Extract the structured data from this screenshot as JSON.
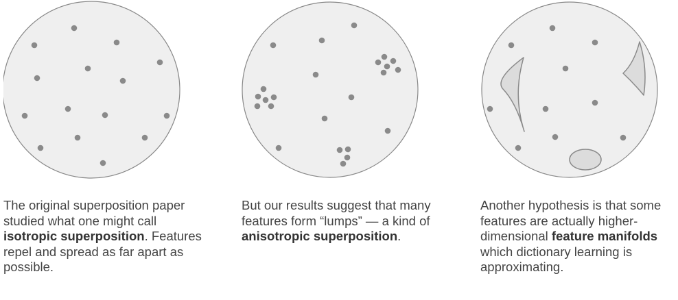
{
  "colors": {
    "disk_fill": "#efefef",
    "disk_stroke": "#888888",
    "dot": "#8a8a8a",
    "manifold_fill": "#dcdcdc",
    "manifold_stroke": "#8a8a8a",
    "text": "#444444"
  },
  "panels": [
    {
      "id": "isotropic",
      "caption_parts": [
        {
          "text": "The original superposition paper studied what one might call ",
          "bold": false
        },
        {
          "text": "isotropic superposition",
          "bold": true
        },
        {
          "text": ". Features repel and spread as far apart as possible.",
          "bold": false
        }
      ]
    },
    {
      "id": "anisotropic",
      "caption_parts": [
        {
          "text": "But our results suggest that many features form “lumps” — a kind of ",
          "bold": false
        },
        {
          "text": "anisotropic superposition",
          "bold": true
        },
        {
          "text": ".",
          "bold": false
        }
      ]
    },
    {
      "id": "manifolds",
      "caption_parts": [
        {
          "text": "Another hypothesis is that some features are actually higher-dimensional ",
          "bold": false
        },
        {
          "text": "feature manifolds",
          "bold": true
        },
        {
          "text": " which dictionary learning is approximating.",
          "bold": false
        }
      ]
    }
  ]
}
